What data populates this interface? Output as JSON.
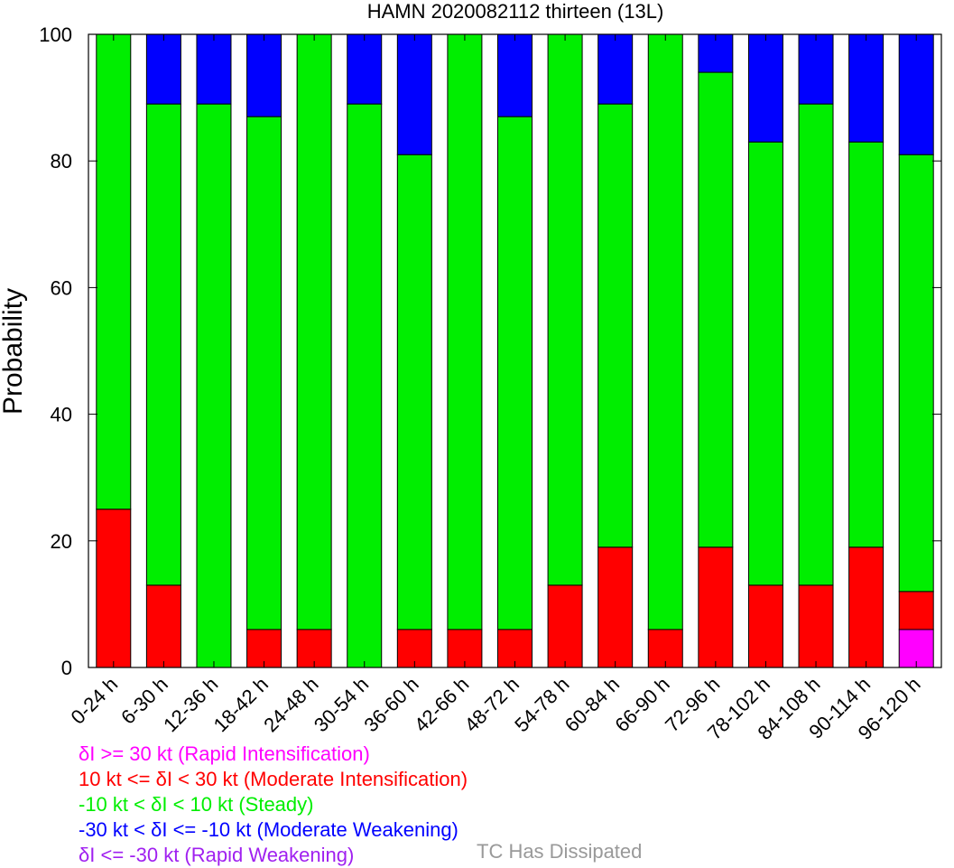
{
  "chart_data": {
    "type": "bar",
    "stacked": true,
    "title": "HAMN 2020082112 thirteen (13L)",
    "ylabel": "Probability",
    "xlabel": "",
    "ylim": [
      0,
      100
    ],
    "yticks": [
      0,
      20,
      40,
      60,
      80,
      100
    ],
    "categories": [
      "0-24 h",
      "6-30 h",
      "12-36 h",
      "18-42 h",
      "24-48 h",
      "30-54 h",
      "36-60 h",
      "42-66 h",
      "48-72 h",
      "54-78 h",
      "60-84 h",
      "66-90 h",
      "72-96 h",
      "78-102 h",
      "84-108 h",
      "90-114 h",
      "96-120 h"
    ],
    "series": [
      {
        "name": "δI >= 30 kt (Rapid Intensification)",
        "color": "#ff00ff",
        "values": [
          0,
          0,
          0,
          0,
          0,
          0,
          0,
          0,
          0,
          0,
          0,
          0,
          0,
          0,
          0,
          0,
          6
        ]
      },
      {
        "name": "10 kt <= δI < 30 kt (Moderate Intensification)",
        "color": "#ff0000",
        "values": [
          25,
          13,
          0,
          6,
          6,
          0,
          6,
          6,
          6,
          13,
          19,
          6,
          19,
          13,
          13,
          19,
          6
        ]
      },
      {
        "name": "-10 kt < δI < 10 kt (Steady)",
        "color": "#00ee00",
        "values": [
          75,
          76,
          89,
          81,
          94,
          89,
          75,
          94,
          81,
          87,
          70,
          94,
          75,
          70,
          76,
          64,
          69
        ]
      },
      {
        "name": "-30 kt < δI <= -10 kt (Moderate Weakening)",
        "color": "#0000ff",
        "values": [
          0,
          11,
          11,
          13,
          0,
          11,
          19,
          0,
          13,
          0,
          11,
          0,
          6,
          17,
          11,
          17,
          19
        ]
      },
      {
        "name": "δI <= -30 kt (Rapid Weakening)",
        "color": "#a020f0",
        "values": [
          0,
          0,
          0,
          0,
          0,
          0,
          0,
          0,
          0,
          0,
          0,
          0,
          0,
          0,
          0,
          0,
          0
        ]
      }
    ],
    "extra_legend": {
      "label": "TC Has Dissipated",
      "color": "#999999"
    },
    "grid": false
  },
  "legend": {
    "items": [
      {
        "text": "δI >= 30 kt (Rapid Intensification)",
        "color": "#ff00ff"
      },
      {
        "text": "10 kt <= δI < 30 kt (Moderate Intensification)",
        "color": "#ff0000"
      },
      {
        "text": "-10 kt < δI < 10 kt (Steady)",
        "color": "#00ee00"
      },
      {
        "text": "-30 kt < δI <= -10 kt (Moderate Weakening)",
        "color": "#0000ff"
      },
      {
        "text": "δI <= -30 kt (Rapid Weakening)",
        "color": "#a020f0"
      }
    ],
    "dissipated": {
      "text": "TC Has Dissipated",
      "color": "#999999"
    }
  }
}
